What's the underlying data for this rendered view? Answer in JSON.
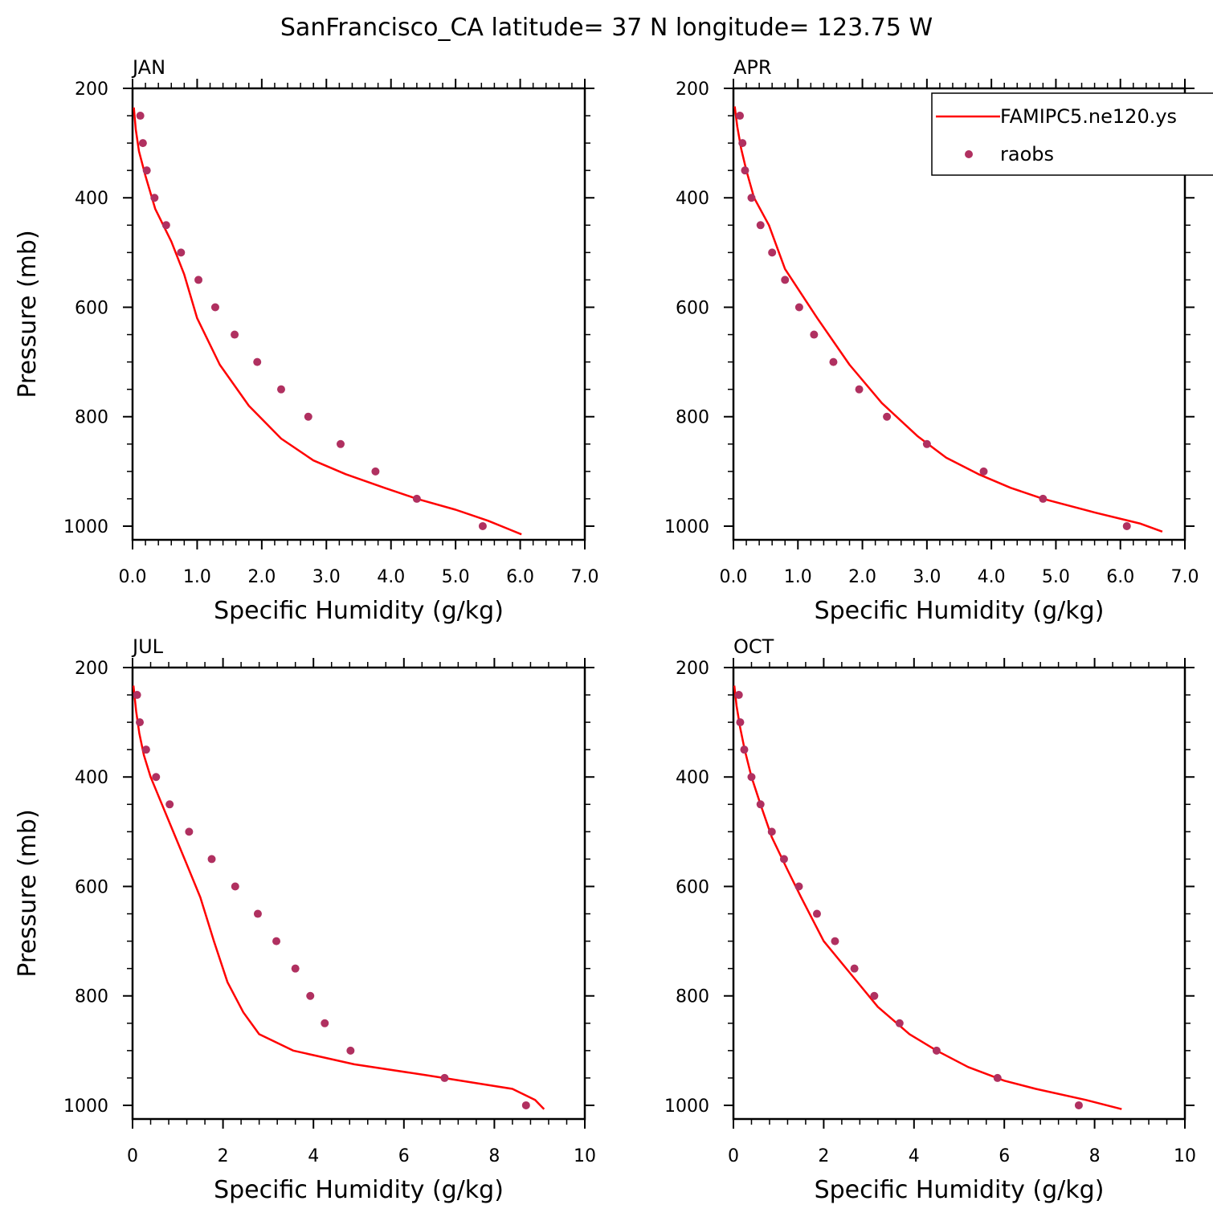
{
  "title": "SanFrancisco_CA  latitude= 37 N longitude= 123.75 W",
  "colors": {
    "model": "#ff0000",
    "obs": "#b03060",
    "axis": "#000000"
  },
  "legend": {
    "placement": "top-right of APR panel",
    "model_label": "FAMIPC5.ne120.ys",
    "obs_label": "raobs"
  },
  "chart_data": [
    {
      "type": "line",
      "panel": "JAN",
      "xlabel": "Specific Humidity (g/kg)",
      "ylabel": "Pressure (mb)",
      "xlim": [
        0,
        7
      ],
      "ylim": [
        200,
        1025
      ],
      "xticks": [
        "0.0",
        "1.0",
        "2.0",
        "3.0",
        "4.0",
        "5.0",
        "6.0",
        "7.0"
      ],
      "yticks": [
        "200",
        "400",
        "600",
        "800",
        "1000"
      ],
      "series": [
        {
          "name": "FAMIPC5.ne120.ys",
          "style": "line",
          "points": [
            [
              0.02,
              235
            ],
            [
              0.05,
              275
            ],
            [
              0.1,
              315
            ],
            [
              0.2,
              360
            ],
            [
              0.35,
              420
            ],
            [
              0.6,
              480
            ],
            [
              0.8,
              540
            ],
            [
              1.0,
              620
            ],
            [
              1.35,
              705
            ],
            [
              1.8,
              780
            ],
            [
              2.3,
              840
            ],
            [
              2.8,
              880
            ],
            [
              3.3,
              905
            ],
            [
              3.9,
              930
            ],
            [
              4.4,
              950
            ],
            [
              5.0,
              970
            ],
            [
              5.5,
              990
            ],
            [
              6.02,
              1015
            ]
          ]
        },
        {
          "name": "raobs",
          "style": "marker",
          "points": [
            [
              0.12,
              250
            ],
            [
              0.16,
              300
            ],
            [
              0.22,
              350
            ],
            [
              0.34,
              400
            ],
            [
              0.52,
              450
            ],
            [
              0.75,
              500
            ],
            [
              1.02,
              550
            ],
            [
              1.28,
              600
            ],
            [
              1.58,
              650
            ],
            [
              1.93,
              700
            ],
            [
              2.3,
              750
            ],
            [
              2.72,
              800
            ],
            [
              3.22,
              850
            ],
            [
              3.76,
              900
            ],
            [
              4.4,
              950
            ],
            [
              5.42,
              1000
            ]
          ]
        }
      ]
    },
    {
      "type": "line",
      "panel": "APR",
      "xlabel": "Specific Humidity (g/kg)",
      "ylabel": "",
      "xlim": [
        0,
        7
      ],
      "ylim": [
        200,
        1025
      ],
      "xticks": [
        "0.0",
        "1.0",
        "2.0",
        "3.0",
        "4.0",
        "5.0",
        "6.0",
        "7.0"
      ],
      "yticks": [
        "200",
        "400",
        "600",
        "800",
        "1000"
      ],
      "series": [
        {
          "name": "FAMIPC5.ne120.ys",
          "style": "line",
          "points": [
            [
              0.02,
              233
            ],
            [
              0.06,
              270
            ],
            [
              0.12,
              310
            ],
            [
              0.2,
              350
            ],
            [
              0.32,
              400
            ],
            [
              0.55,
              450
            ],
            [
              0.8,
              530
            ],
            [
              1.3,
              620
            ],
            [
              1.8,
              705
            ],
            [
              2.3,
              775
            ],
            [
              2.85,
              835
            ],
            [
              3.3,
              875
            ],
            [
              3.8,
              905
            ],
            [
              4.3,
              930
            ],
            [
              4.8,
              950
            ],
            [
              5.6,
              975
            ],
            [
              6.3,
              995
            ],
            [
              6.65,
              1010
            ]
          ]
        },
        {
          "name": "raobs",
          "style": "marker",
          "points": [
            [
              0.1,
              250
            ],
            [
              0.14,
              300
            ],
            [
              0.18,
              350
            ],
            [
              0.28,
              400
            ],
            [
              0.42,
              450
            ],
            [
              0.6,
              500
            ],
            [
              0.8,
              550
            ],
            [
              1.02,
              600
            ],
            [
              1.25,
              650
            ],
            [
              1.55,
              700
            ],
            [
              1.95,
              750
            ],
            [
              2.38,
              800
            ],
            [
              3.0,
              850
            ],
            [
              3.88,
              900
            ],
            [
              4.8,
              950
            ],
            [
              6.1,
              1000
            ]
          ]
        }
      ]
    },
    {
      "type": "line",
      "panel": "JUL",
      "xlabel": "Specific Humidity (g/kg)",
      "ylabel": "Pressure (mb)",
      "xlim": [
        0,
        10
      ],
      "ylim": [
        200,
        1025
      ],
      "xticks": [
        "0",
        "2",
        "4",
        "6",
        "8",
        "10"
      ],
      "yticks": [
        "200",
        "400",
        "600",
        "800",
        "1000"
      ],
      "series": [
        {
          "name": "FAMIPC5.ne120.ys",
          "style": "line",
          "points": [
            [
              0.02,
              233
            ],
            [
              0.08,
              280
            ],
            [
              0.15,
              320
            ],
            [
              0.25,
              360
            ],
            [
              0.4,
              400
            ],
            [
              0.65,
              450
            ],
            [
              0.9,
              500
            ],
            [
              1.2,
              560
            ],
            [
              1.5,
              620
            ],
            [
              1.8,
              700
            ],
            [
              2.1,
              775
            ],
            [
              2.45,
              830
            ],
            [
              2.8,
              870
            ],
            [
              3.55,
              900
            ],
            [
              4.9,
              925
            ],
            [
              6.5,
              945
            ],
            [
              7.8,
              962
            ],
            [
              8.4,
              970
            ],
            [
              8.9,
              990
            ],
            [
              9.1,
              1007
            ]
          ]
        },
        {
          "name": "raobs",
          "style": "marker",
          "points": [
            [
              0.1,
              250
            ],
            [
              0.16,
              300
            ],
            [
              0.3,
              350
            ],
            [
              0.52,
              400
            ],
            [
              0.82,
              450
            ],
            [
              1.25,
              500
            ],
            [
              1.75,
              550
            ],
            [
              2.27,
              600
            ],
            [
              2.77,
              650
            ],
            [
              3.18,
              700
            ],
            [
              3.6,
              750
            ],
            [
              3.93,
              800
            ],
            [
              4.25,
              850
            ],
            [
              4.82,
              900
            ],
            [
              6.9,
              950
            ],
            [
              8.7,
              1000
            ]
          ]
        }
      ]
    },
    {
      "type": "line",
      "panel": "OCT",
      "xlabel": "Specific Humidity (g/kg)",
      "ylabel": "",
      "xlim": [
        0,
        10
      ],
      "ylim": [
        200,
        1025
      ],
      "xticks": [
        "0",
        "2",
        "4",
        "6",
        "8",
        "10"
      ],
      "yticks": [
        "200",
        "400",
        "600",
        "800",
        "1000"
      ],
      "series": [
        {
          "name": "FAMIPC5.ne120.ys",
          "style": "line",
          "points": [
            [
              0.02,
              233
            ],
            [
              0.07,
              270
            ],
            [
              0.15,
              310
            ],
            [
              0.25,
              350
            ],
            [
              0.4,
              400
            ],
            [
              0.6,
              450
            ],
            [
              0.85,
              510
            ],
            [
              1.2,
              570
            ],
            [
              1.5,
              620
            ],
            [
              2.0,
              700
            ],
            [
              2.6,
              760
            ],
            [
              3.2,
              820
            ],
            [
              3.9,
              870
            ],
            [
              4.5,
              900
            ],
            [
              5.2,
              930
            ],
            [
              6.0,
              955
            ],
            [
              6.7,
              970
            ],
            [
              7.8,
              990
            ],
            [
              8.6,
              1007
            ]
          ]
        },
        {
          "name": "raobs",
          "style": "marker",
          "points": [
            [
              0.12,
              250
            ],
            [
              0.15,
              300
            ],
            [
              0.24,
              350
            ],
            [
              0.4,
              400
            ],
            [
              0.6,
              450
            ],
            [
              0.85,
              500
            ],
            [
              1.12,
              550
            ],
            [
              1.45,
              600
            ],
            [
              1.85,
              650
            ],
            [
              2.25,
              700
            ],
            [
              2.68,
              750
            ],
            [
              3.12,
              800
            ],
            [
              3.68,
              850
            ],
            [
              4.5,
              900
            ],
            [
              5.85,
              950
            ],
            [
              7.65,
              1000
            ]
          ]
        }
      ]
    }
  ]
}
